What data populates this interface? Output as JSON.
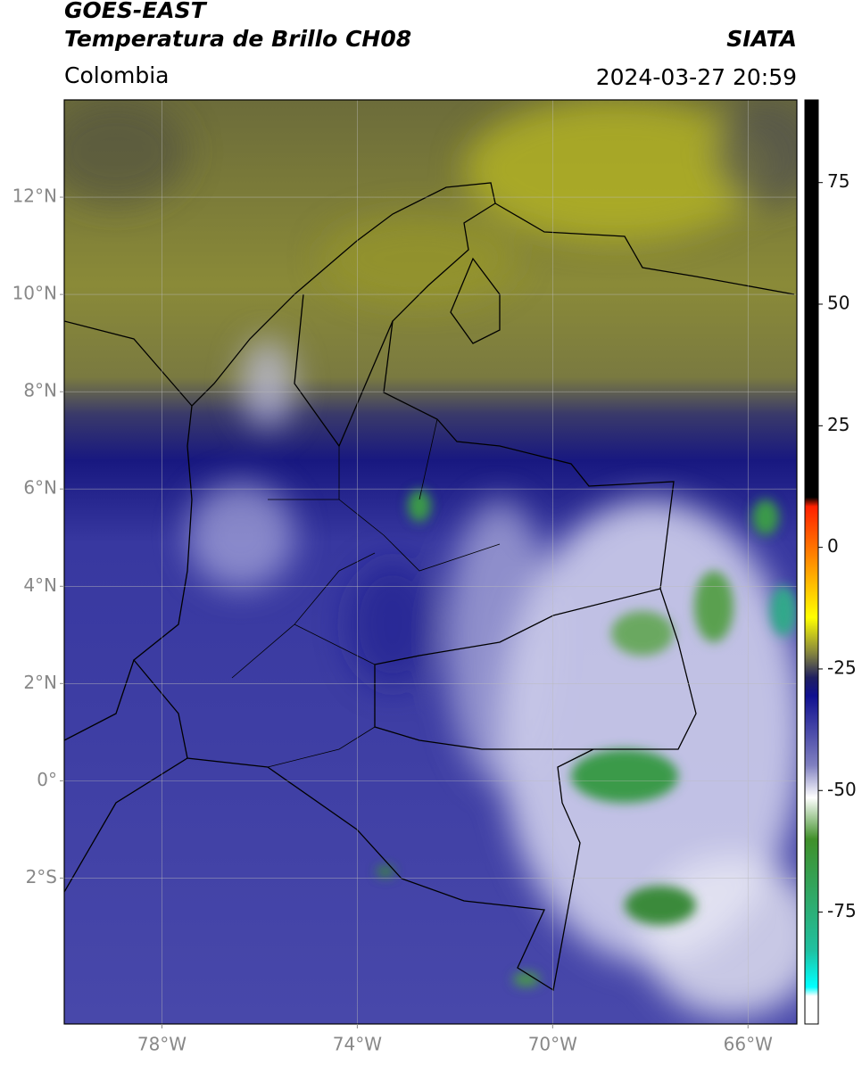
{
  "header": {
    "title": "GOES-EAST",
    "subtitle": "Temperatura de Brillo CH08",
    "source": "SIATA",
    "region": "Colombia",
    "timestamp": "2024-03-27 20:59"
  },
  "map": {
    "xlim": [
      -80,
      -65
    ],
    "ylim": [
      -5,
      14
    ],
    "grid": true,
    "xticks": [
      {
        "value": -78,
        "label": "78°W"
      },
      {
        "value": -74,
        "label": "74°W"
      },
      {
        "value": -70,
        "label": "70°W"
      },
      {
        "value": -66,
        "label": "66°W"
      }
    ],
    "yticks": [
      {
        "value": 12,
        "label": "12°N"
      },
      {
        "value": 10,
        "label": "10°N"
      },
      {
        "value": 8,
        "label": "8°N"
      },
      {
        "value": 6,
        "label": "6°N"
      },
      {
        "value": 4,
        "label": "4°N"
      },
      {
        "value": 2,
        "label": "2°N"
      },
      {
        "value": 0,
        "label": "0°"
      },
      {
        "value": -2,
        "label": "2°S"
      }
    ]
  },
  "colorbar": {
    "lim": [
      -98,
      92
    ],
    "ticks": [
      75,
      50,
      25,
      0,
      -25,
      -50,
      -75
    ]
  }
}
